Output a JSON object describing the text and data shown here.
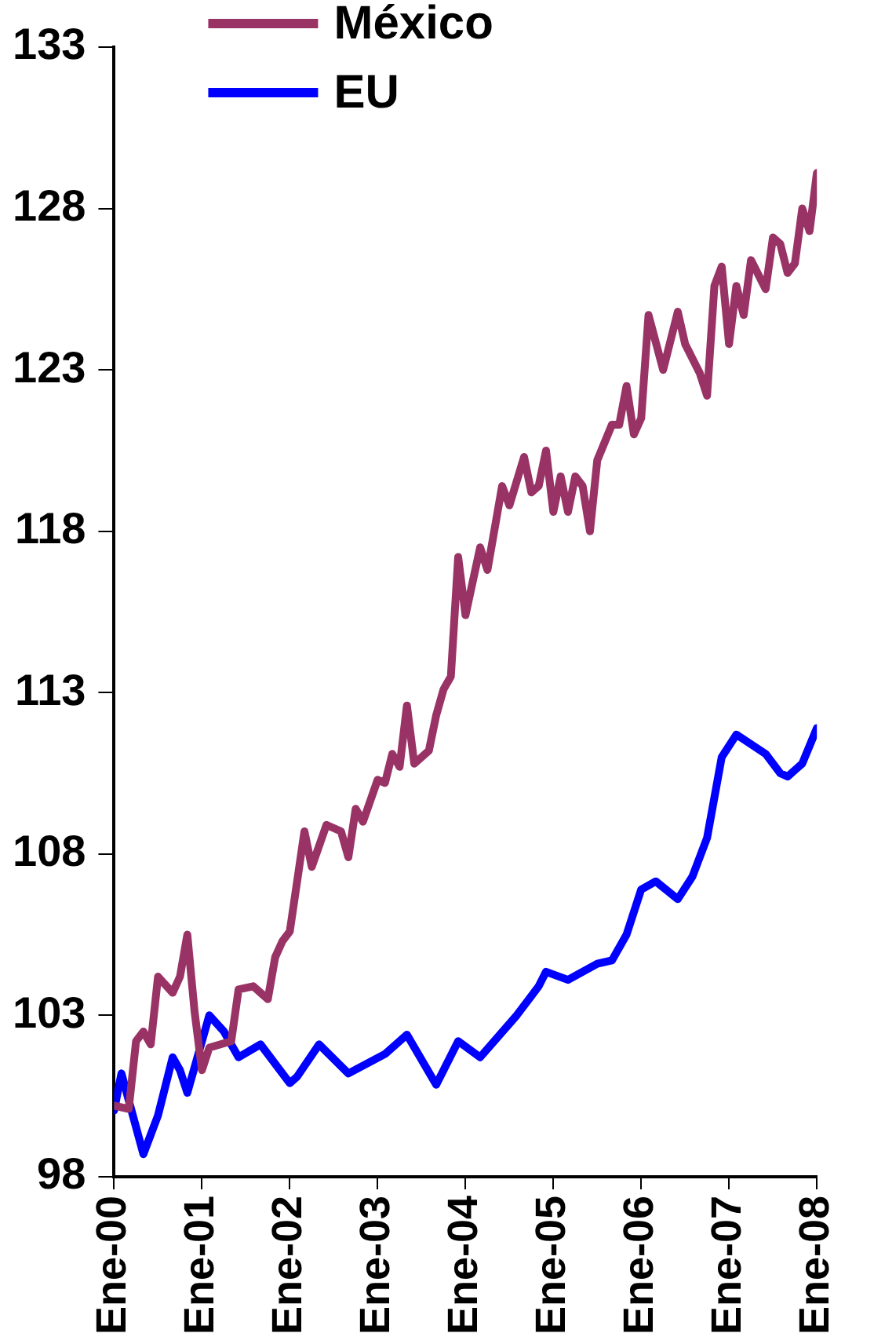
{
  "chart_data": {
    "type": "line",
    "xlim": [
      "2000-01",
      "2008-01"
    ],
    "xticks": [
      {
        "value": "2000-01",
        "label": "Ene-00"
      },
      {
        "value": "2001-01",
        "label": "Ene-01"
      },
      {
        "value": "2002-01",
        "label": "Ene-02"
      },
      {
        "value": "2003-01",
        "label": "Ene-03"
      },
      {
        "value": "2004-01",
        "label": "Ene-04"
      },
      {
        "value": "2005-01",
        "label": "Ene-05"
      },
      {
        "value": "2006-01",
        "label": "Ene-06"
      },
      {
        "value": "2007-01",
        "label": "Ene-07"
      },
      {
        "value": "2008-01",
        "label": "Ene-08"
      }
    ],
    "ylim": [
      98,
      133
    ],
    "yticks": [
      98,
      103,
      108,
      113,
      118,
      123,
      128,
      133
    ],
    "grid": false,
    "legend": "top",
    "marker": "none",
    "line_style": "solid",
    "series": [
      {
        "name": "México",
        "color": "#993366",
        "x": [
          "2000-01",
          "2000-03",
          "2000-04",
          "2000-05",
          "2000-06",
          "2000-07",
          "2000-09",
          "2000-10",
          "2000-11",
          "2000-12",
          "2001-01",
          "2001-02",
          "2001-05",
          "2001-06",
          "2001-08",
          "2001-10",
          "2001-11",
          "2001-12",
          "2002-01",
          "2002-03",
          "2002-04",
          "2002-06",
          "2002-08",
          "2002-09",
          "2002-10",
          "2002-11",
          "2003-01",
          "2003-02",
          "2003-03",
          "2003-04",
          "2003-05",
          "2003-06",
          "2003-08",
          "2003-09",
          "2003-10",
          "2003-11",
          "2003-12",
          "2004-01",
          "2004-03",
          "2004-04",
          "2004-06",
          "2004-07",
          "2004-09",
          "2004-10",
          "2004-11",
          "2004-12",
          "2005-01",
          "2005-02",
          "2005-03",
          "2005-04",
          "2005-05",
          "2005-06",
          "2005-07",
          "2005-09",
          "2005-10",
          "2005-11",
          "2005-12",
          "2006-01",
          "2006-02",
          "2006-04",
          "2006-06",
          "2006-07",
          "2006-09",
          "2006-10",
          "2006-11",
          "2006-12",
          "2007-01",
          "2007-02",
          "2007-03",
          "2007-04",
          "2007-06",
          "2007-07",
          "2007-08",
          "2007-09",
          "2007-10",
          "2007-11",
          "2007-12",
          "2008-01"
        ],
        "values": [
          100.2,
          100.1,
          102.2,
          102.5,
          102.1,
          104.2,
          103.7,
          104.2,
          105.5,
          103.1,
          101.3,
          102.0,
          102.2,
          103.8,
          103.9,
          103.5,
          104.8,
          105.3,
          105.6,
          108.7,
          107.6,
          108.9,
          108.7,
          107.9,
          109.4,
          109.0,
          110.3,
          110.2,
          111.1,
          110.7,
          112.6,
          110.8,
          111.2,
          112.3,
          113.1,
          113.5,
          117.2,
          115.4,
          117.5,
          116.8,
          119.4,
          118.8,
          120.3,
          119.2,
          119.4,
          120.5,
          118.6,
          119.7,
          118.6,
          119.7,
          119.4,
          118.0,
          120.2,
          121.3,
          121.3,
          122.5,
          121.0,
          121.5,
          124.7,
          123.0,
          124.8,
          123.8,
          122.9,
          122.2,
          125.6,
          126.2,
          123.8,
          125.6,
          124.7,
          126.4,
          125.5,
          127.1,
          126.9,
          126.0,
          126.3,
          128.0,
          127.3,
          129.1
        ]
      },
      {
        "name": "EU",
        "color": "#0000ff",
        "x": [
          "2000-01",
          "2000-02",
          "2000-05",
          "2000-07",
          "2000-09",
          "2000-10",
          "2000-11",
          "2001-02",
          "2001-04",
          "2001-06",
          "2001-09",
          "2002-01",
          "2002-02",
          "2002-05",
          "2002-09",
          "2003-02",
          "2003-05",
          "2003-09",
          "2003-12",
          "2004-03",
          "2004-08",
          "2004-11",
          "2004-12",
          "2005-03",
          "2005-07",
          "2005-09",
          "2005-11",
          "2006-01",
          "2006-03",
          "2006-06",
          "2006-08",
          "2006-10",
          "2006-12",
          "2007-02",
          "2007-06",
          "2007-08",
          "2007-09",
          "2007-11",
          "2008-01"
        ],
        "values": [
          100.05,
          101.2,
          98.7,
          99.9,
          101.7,
          101.3,
          100.6,
          103.0,
          102.5,
          101.7,
          102.1,
          100.9,
          101.1,
          102.1,
          101.2,
          101.8,
          102.4,
          100.85,
          102.2,
          101.7,
          103.0,
          103.9,
          104.35,
          104.1,
          104.6,
          104.7,
          105.5,
          106.9,
          107.15,
          106.6,
          107.3,
          108.5,
          111.0,
          111.7,
          111.1,
          110.5,
          110.4,
          110.8,
          111.9
        ]
      }
    ]
  }
}
